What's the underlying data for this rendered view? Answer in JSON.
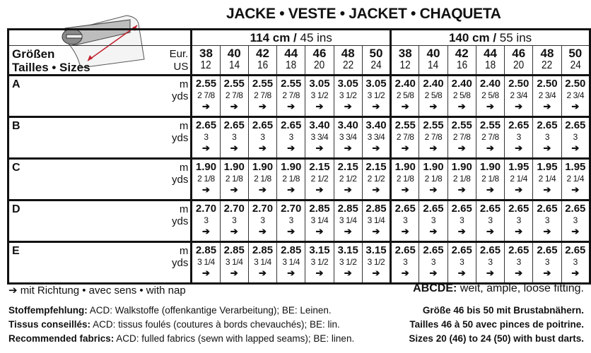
{
  "title": "JACKE • VESTE • JACKET • CHAQUETA",
  "groups": [
    {
      "cm": "114 cm /",
      "ins": " 45 ins"
    },
    {
      "cm": "140 cm /",
      "ins": " 55 ins"
    }
  ],
  "size_label_1": "Größen",
  "size_label_2": "Tailles • Sizes",
  "eur_label": "Eur.",
  "us_label": "US",
  "sizes_eur": [
    "38",
    "40",
    "42",
    "44",
    "46",
    "48",
    "50",
    "38",
    "40",
    "42",
    "44",
    "46",
    "48",
    "50"
  ],
  "sizes_us": [
    "12",
    "14",
    "16",
    "18",
    "20",
    "22",
    "24",
    "12",
    "14",
    "16",
    "18",
    "20",
    "22",
    "24"
  ],
  "unit_m": "m",
  "unit_yds": "yds",
  "nap_arrow": "➔",
  "rows": [
    {
      "label": "A",
      "m": [
        "2.55",
        "2.55",
        "2.55",
        "2.55",
        "3.05",
        "3.05",
        "3.05",
        "2.40",
        "2.40",
        "2.40",
        "2.40",
        "2.50",
        "2.50",
        "2.50"
      ],
      "yds": [
        "2 7/8",
        "2 7/8",
        "2 7/8",
        "2 7/8",
        "3 1/2",
        "3 1/2",
        "3 1/2",
        "2 5/8",
        "2 5/8",
        "2 5/8",
        "2 5/8",
        "2 3/4",
        "2 3/4",
        "2 3/4"
      ]
    },
    {
      "label": "B",
      "m": [
        "2.65",
        "2.65",
        "2.65",
        "2.65",
        "3.40",
        "3.40",
        "3.40",
        "2.55",
        "2.55",
        "2.55",
        "2.55",
        "2.65",
        "2.65",
        "2.65"
      ],
      "yds": [
        "3",
        "3",
        "3",
        "3",
        "3 3/4",
        "3 3/4",
        "3 3/4",
        "2 7/8",
        "2 7/8",
        "2 7/8",
        "2 7/8",
        "3",
        "3",
        "3"
      ]
    },
    {
      "label": "C",
      "m": [
        "1.90",
        "1.90",
        "1.90",
        "1.90",
        "2.15",
        "2.15",
        "2.15",
        "1.90",
        "1.90",
        "1.90",
        "1.90",
        "1.95",
        "1.95",
        "1.95"
      ],
      "yds": [
        "2 1/8",
        "2 1/8",
        "2 1/8",
        "2 1/8",
        "2 1/2",
        "2 1/2",
        "2 1/2",
        "2 1/8",
        "2 1/8",
        "2 1/8",
        "2 1/8",
        "2 1/4",
        "2 1/4",
        "2 1/4"
      ]
    },
    {
      "label": "D",
      "m": [
        "2.70",
        "2.70",
        "2.70",
        "2.70",
        "2.85",
        "2.85",
        "2.85",
        "2.65",
        "2.65",
        "2.65",
        "2.65",
        "2.65",
        "2.65",
        "2.65"
      ],
      "yds": [
        "3",
        "3",
        "3",
        "3",
        "3 1/4",
        "3 1/4",
        "3 1/4",
        "3",
        "3",
        "3",
        "3",
        "3",
        "3",
        "3"
      ]
    },
    {
      "label": "E",
      "m": [
        "2.85",
        "2.85",
        "2.85",
        "2.85",
        "3.15",
        "3.15",
        "3.15",
        "2.65",
        "2.65",
        "2.65",
        "2.65",
        "2.65",
        "2.65",
        "2.65"
      ],
      "yds": [
        "3 1/4",
        "3 1/4",
        "3 1/4",
        "3 1/4",
        "3 1/2",
        "3 1/2",
        "3 1/2",
        "3",
        "3",
        "3",
        "3",
        "3",
        "3",
        "3"
      ]
    }
  ],
  "legend": "➔ mit Richtung • avec sens • with nap",
  "fit_key": "ABCDE:",
  "fit_text": " weit, ample, loose fitting.",
  "fabrics": [
    {
      "key": "Stoffempfehlung:",
      "text": " ACD: Walkstoffe (offenkantige Verarbeitung); BE: Leinen."
    },
    {
      "key": "Tissus conseillés:",
      "text": " ACD: tissus foulés (coutures à bords chevauchés); BE: lin."
    },
    {
      "key": "Recommended fabrics:",
      "text": " ACD: fulled fabrics (sewn with lapped seams); BE: linen."
    }
  ],
  "darts": [
    "Größe 46 bis 50 mit Brustabnähern.",
    "Tailles 46 à 50 avec pinces de poitrine.",
    "Sizes 20 (46) to 24 (50) with bust darts."
  ]
}
